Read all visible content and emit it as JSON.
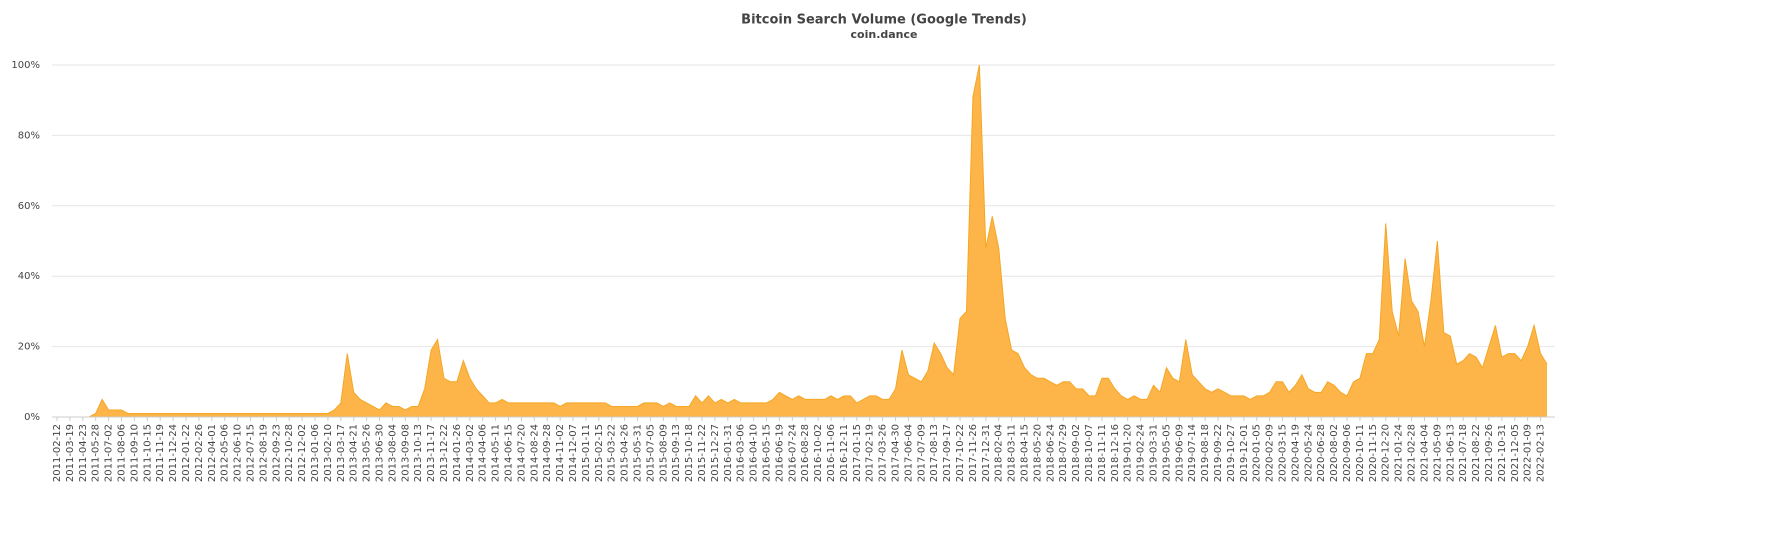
{
  "chart_data": {
    "type": "area",
    "title": "Bitcoin Search Volume (Google Trends)",
    "subtitle": "coin.dance",
    "color": "#fdb54a",
    "line_color": "#f5a623",
    "grid": true,
    "ylim": [
      0,
      100
    ],
    "yticks": [
      {
        "value": 0,
        "label": "0%"
      },
      {
        "value": 20,
        "label": "20%"
      },
      {
        "value": 40,
        "label": "40%"
      },
      {
        "value": 60,
        "label": "60%"
      },
      {
        "value": 80,
        "label": "80%"
      },
      {
        "value": 100,
        "label": "100%"
      }
    ],
    "categories": [
      "2011-02-12",
      null,
      "2011-03-19",
      null,
      "2011-04-23",
      null,
      "2011-05-28",
      null,
      "2011-07-02",
      null,
      "2011-08-06",
      null,
      "2011-09-10",
      null,
      "2011-10-15",
      null,
      "2011-11-19",
      null,
      "2011-12-24",
      null,
      "2012-01-22",
      null,
      "2012-02-26",
      null,
      "2012-04-01",
      null,
      "2012-05-06",
      null,
      "2012-06-10",
      null,
      "2012-07-15",
      null,
      "2012-08-19",
      null,
      "2012-09-23",
      null,
      "2012-10-28",
      null,
      "2012-12-02",
      null,
      "2013-01-06",
      null,
      "2013-02-10",
      null,
      "2013-03-17",
      null,
      "2013-04-21",
      null,
      "2013-05-26",
      null,
      "2013-06-30",
      null,
      "2013-08-04",
      null,
      "2013-09-08",
      null,
      "2013-10-13",
      null,
      "2013-11-17",
      null,
      "2013-12-22",
      null,
      "2014-01-26",
      null,
      "2014-03-02",
      null,
      "2014-04-06",
      null,
      "2014-05-11",
      null,
      "2014-06-15",
      null,
      "2014-07-20",
      null,
      "2014-08-24",
      null,
      "2014-09-28",
      null,
      "2014-11-02",
      null,
      "2014-12-07",
      null,
      "2015-01-11",
      null,
      "2015-02-15",
      null,
      "2015-03-22",
      null,
      "2015-04-26",
      null,
      "2015-05-31",
      null,
      "2015-07-05",
      null,
      "2015-08-09",
      null,
      "2015-09-13",
      null,
      "2015-10-18",
      null,
      "2015-11-22",
      null,
      "2015-12-27",
      null,
      "2016-01-31",
      null,
      "2016-03-06",
      null,
      "2016-04-10",
      null,
      "2016-05-15",
      null,
      "2016-06-19",
      null,
      "2016-07-24",
      null,
      "2016-08-28",
      null,
      "2016-10-02",
      null,
      "2016-11-06",
      null,
      "2016-12-11",
      null,
      "2017-01-15",
      null,
      "2017-02-19",
      null,
      "2017-03-26",
      null,
      "2017-04-30",
      null,
      "2017-06-04",
      null,
      "2017-07-09",
      null,
      "2017-08-13",
      null,
      "2017-09-17",
      null,
      "2017-10-22",
      null,
      "2017-11-26",
      null,
      "2017-12-31",
      null,
      "2018-02-04",
      null,
      "2018-03-11",
      null,
      "2018-04-15",
      null,
      "2018-05-20",
      null,
      "2018-06-24",
      null,
      "2018-07-29",
      null,
      "2018-09-02",
      null,
      "2018-10-07",
      null,
      "2018-11-11",
      null,
      "2018-12-16",
      null,
      "2019-01-20",
      null,
      "2019-02-24",
      null,
      "2019-03-31",
      null,
      "2019-05-05",
      null,
      "2019-06-09",
      null,
      "2019-07-14",
      null,
      "2019-08-18",
      null,
      "2019-09-22",
      null,
      "2019-10-27",
      null,
      "2019-12-01",
      null,
      "2020-01-05",
      null,
      "2020-02-09",
      null,
      "2020-03-15",
      null,
      "2020-04-19",
      null,
      "2020-05-24",
      null,
      "2020-06-28",
      null,
      "2020-08-02",
      null,
      "2020-09-06",
      null,
      "2020-10-11",
      null,
      "2020-11-15",
      null,
      "2020-12-20",
      null,
      "2021-01-24",
      null,
      "2021-02-28",
      null,
      "2021-04-04",
      null,
      "2021-05-09",
      null,
      "2021-06-13",
      null,
      "2021-07-18",
      null,
      "2021-08-22",
      null,
      "2021-09-26",
      null,
      "2021-10-31",
      null,
      "2021-12-05",
      null,
      "2022-01-09",
      null,
      "2022-02-13",
      null
    ],
    "values": [
      0,
      0,
      0,
      0,
      0,
      0,
      1,
      5,
      2,
      2,
      2,
      1,
      1,
      1,
      1,
      1,
      1,
      1,
      1,
      1,
      1,
      1,
      1,
      1,
      1,
      1,
      1,
      1,
      1,
      1,
      1,
      1,
      1,
      1,
      1,
      1,
      1,
      1,
      1,
      1,
      1,
      1,
      1,
      2,
      4,
      18,
      7,
      5,
      4,
      3,
      2,
      4,
      3,
      3,
      2,
      3,
      3,
      8,
      19,
      22,
      11,
      10,
      10,
      16,
      11,
      8,
      6,
      4,
      4,
      5,
      4,
      4,
      4,
      4,
      4,
      4,
      4,
      4,
      3,
      4,
      4,
      4,
      4,
      4,
      4,
      4,
      3,
      3,
      3,
      3,
      3,
      4,
      4,
      4,
      3,
      4,
      3,
      3,
      3,
      6,
      4,
      6,
      4,
      5,
      4,
      5,
      4,
      4,
      4,
      4,
      4,
      5,
      7,
      6,
      5,
      6,
      5,
      5,
      5,
      5,
      6,
      5,
      6,
      6,
      4,
      5,
      6,
      6,
      5,
      5,
      8,
      19,
      12,
      11,
      10,
      13,
      21,
      18,
      14,
      12,
      28,
      30,
      91,
      100,
      48,
      57,
      48,
      28,
      19,
      18,
      14,
      12,
      11,
      11,
      10,
      9,
      10,
      10,
      8,
      8,
      6,
      6,
      11,
      11,
      8,
      6,
      5,
      6,
      5,
      5,
      9,
      7,
      14,
      11,
      10,
      22,
      12,
      10,
      8,
      7,
      8,
      7,
      6,
      6,
      6,
      5,
      6,
      6,
      7,
      10,
      10,
      7,
      9,
      12,
      8,
      7,
      7,
      10,
      9,
      7,
      6,
      10,
      11,
      18,
      18,
      22,
      55,
      30,
      23,
      45,
      33,
      30,
      20,
      33,
      50,
      24,
      23,
      15,
      16,
      18,
      17,
      14,
      20,
      26,
      17,
      18,
      18,
      16,
      20,
      26,
      18,
      15
    ]
  }
}
